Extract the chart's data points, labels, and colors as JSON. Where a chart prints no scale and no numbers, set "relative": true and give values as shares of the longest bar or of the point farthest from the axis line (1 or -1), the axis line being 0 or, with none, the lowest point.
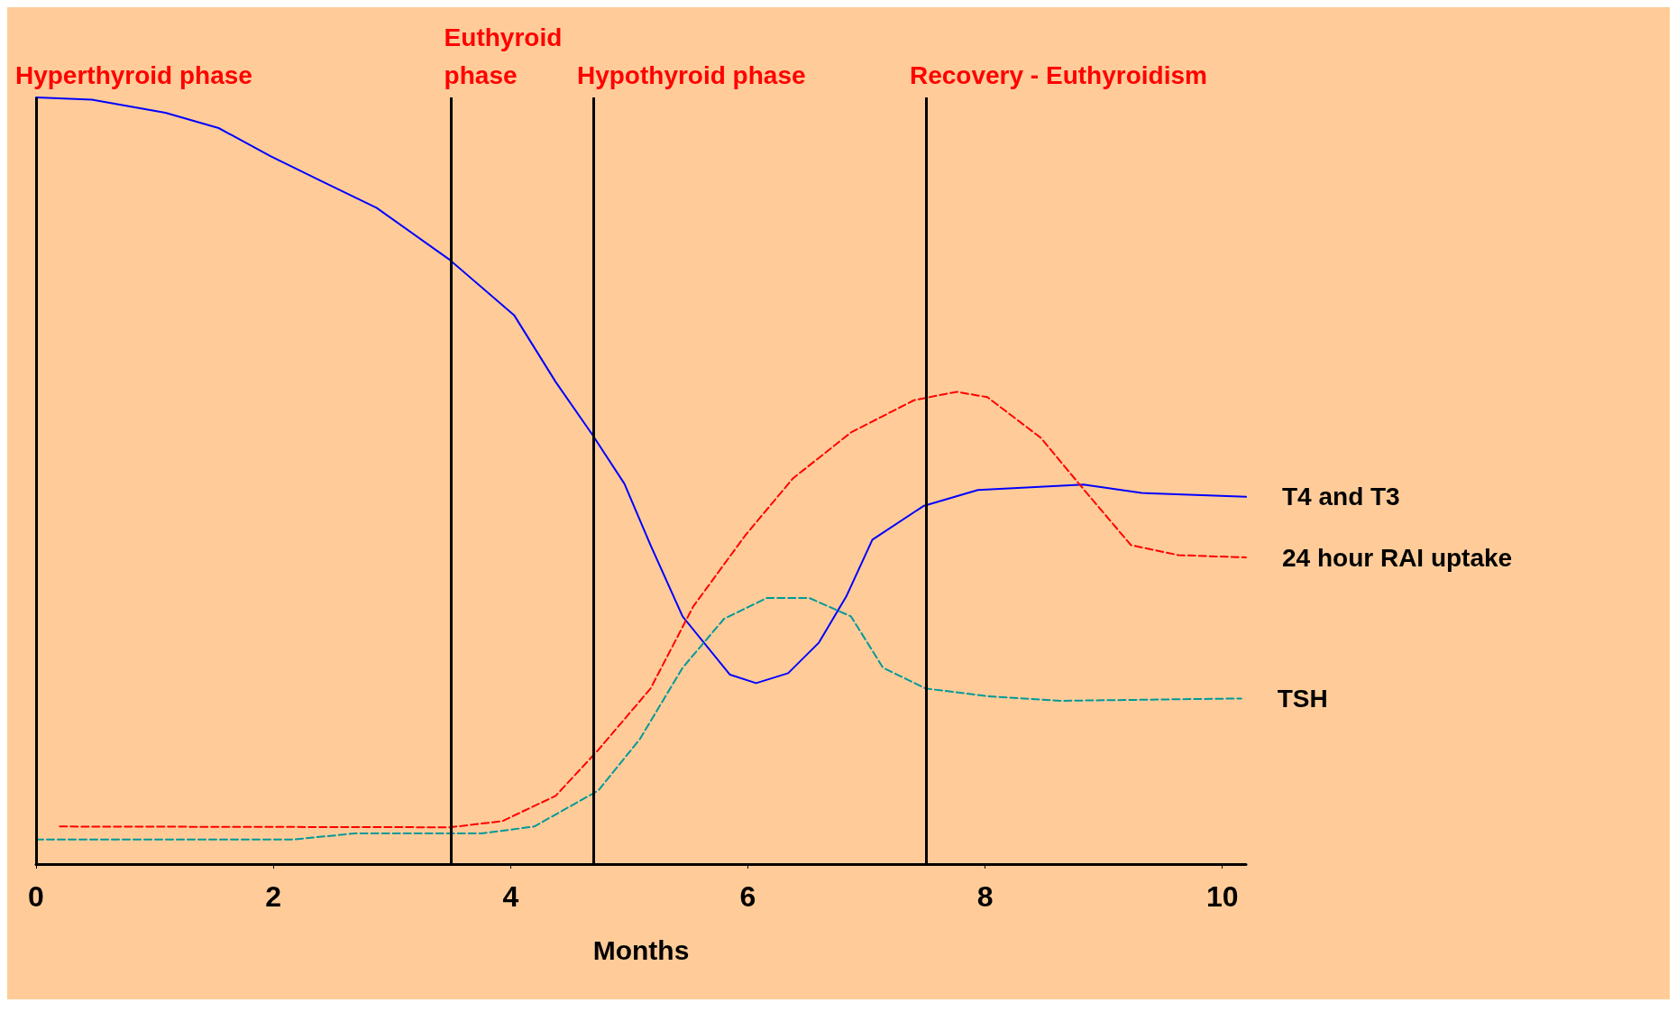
{
  "chart_data": {
    "type": "line",
    "relative": true,
    "xlabel": "Months",
    "xlim": [
      0,
      10.2
    ],
    "xticks": [
      0,
      2,
      4,
      6,
      8,
      10
    ],
    "grid": false,
    "legend": false,
    "marker": "none",
    "series": [
      {
        "name": "T4 and T3",
        "color": "#0000ff",
        "line_style": "solid",
        "x": [
          0,
          0.47,
          1.09,
          1.54,
          1.98,
          2.43,
          2.87,
          3.48,
          4.03,
          4.38,
          4.69,
          4.96,
          5.18,
          5.45,
          5.85,
          6.07,
          6.34,
          6.6,
          6.83,
          7.05,
          7.48,
          7.94,
          8.83,
          9.32,
          10.2
        ],
        "values": [
          1,
          0.997,
          0.98,
          0.96,
          0.923,
          0.889,
          0.856,
          0.789,
          0.716,
          0.629,
          0.56,
          0.496,
          0.416,
          0.323,
          0.247,
          0.236,
          0.249,
          0.289,
          0.349,
          0.423,
          0.467,
          0.488,
          0.495,
          0.484,
          0.479
        ]
      },
      {
        "name": "24 hour RAI uptake",
        "color": "#ff0000",
        "line_style": "dashed",
        "x": [
          0.2,
          3.49,
          3.93,
          4.38,
          4.74,
          5.18,
          5.54,
          5.98,
          6.38,
          6.87,
          7.4,
          7.76,
          8.02,
          8.47,
          8.83,
          9.23,
          9.63,
          10.2
        ],
        "values": [
          0.049,
          0.048,
          0.056,
          0.089,
          0.149,
          0.229,
          0.336,
          0.429,
          0.503,
          0.563,
          0.605,
          0.616,
          0.609,
          0.556,
          0.489,
          0.416,
          0.403,
          0.4
        ]
      },
      {
        "name": "TSH",
        "color": "#009999",
        "line_style": "dashed",
        "x": [
          0,
          2.16,
          2.69,
          3.76,
          4.2,
          4.74,
          5.09,
          5.45,
          5.8,
          6.16,
          6.52,
          6.87,
          7.14,
          7.5,
          8.02,
          8.64,
          10.16
        ],
        "values": [
          0.032,
          0.032,
          0.04,
          0.04,
          0.049,
          0.096,
          0.163,
          0.256,
          0.32,
          0.347,
          0.347,
          0.323,
          0.256,
          0.229,
          0.219,
          0.213,
          0.216
        ]
      }
    ],
    "ref_lines": [
      {
        "axis": "x",
        "value": 0,
        "color": "#000000"
      },
      {
        "axis": "x",
        "value": 3.5,
        "color": "#000000"
      },
      {
        "axis": "x",
        "value": 4.7,
        "color": "#000000"
      },
      {
        "axis": "x",
        "value": 7.5,
        "color": "#000000"
      }
    ],
    "annotations": [
      "Hyperthyroid phase",
      "Euthyroid phase",
      "Hypothyroid phase",
      "Recovery - Euthyroidism"
    ]
  }
}
